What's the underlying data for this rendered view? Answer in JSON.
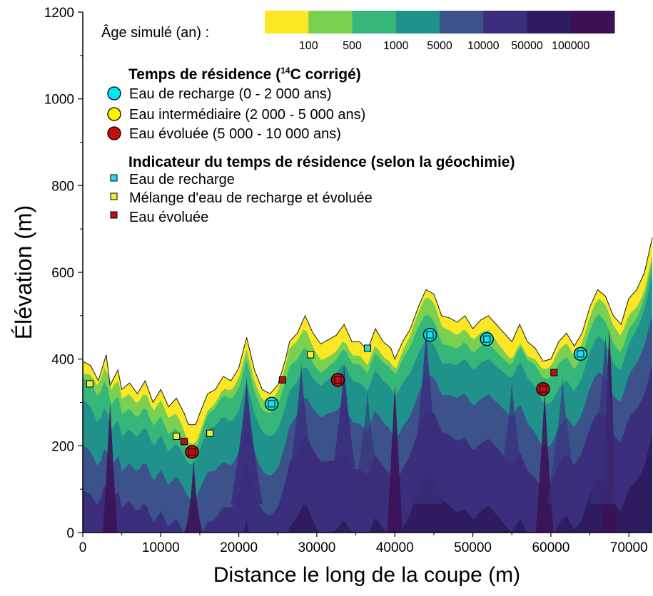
{
  "chart_data": {
    "type": "area",
    "xlabel": "Distance le long de la coupe (m)",
    "ylabel": "Élévation (m)",
    "xlim": [
      0,
      73000
    ],
    "ylim": [
      0,
      1200
    ],
    "xticks": [
      0,
      10000,
      20000,
      30000,
      40000,
      50000,
      60000,
      70000
    ],
    "yticks": [
      0,
      200,
      400,
      600,
      800,
      1000,
      1200
    ],
    "colorbar": {
      "label": "Âge simulé (an) :",
      "ticks": [
        "100",
        "500",
        "1000",
        "5000",
        "10000",
        "50000",
        "100000"
      ],
      "colors": [
        "#fde725",
        "#7ad151",
        "#35b779",
        "#21918c",
        "#3b528b",
        "#3b2e7c",
        "#2f1b60",
        "#3d0f55"
      ]
    },
    "surface": {
      "x": [
        0,
        1000,
        2000,
        3000,
        3500,
        4500,
        5000,
        6000,
        7000,
        8000,
        9000,
        10000,
        11000,
        12000,
        13000,
        13500,
        14000,
        14500,
        15000,
        16000,
        17000,
        18000,
        19000,
        20000,
        21000,
        22000,
        23000,
        24000,
        25000,
        26000,
        26500,
        27500,
        28500,
        29500,
        30500,
        31500,
        32500,
        33500,
        34500,
        35500,
        36500,
        37500,
        38500,
        39500,
        40000,
        41000,
        42000,
        43000,
        44000,
        45000,
        46000,
        47000,
        48000,
        49000,
        50000,
        51000,
        52000,
        53000,
        54000,
        55000,
        56000,
        57000,
        58000,
        59000,
        60000,
        61000,
        62000,
        63000,
        64000,
        65000,
        66000,
        67000,
        68000,
        69000,
        70000,
        71000,
        72000,
        73000
      ],
      "y": [
        395,
        385,
        350,
        410,
        340,
        375,
        330,
        345,
        320,
        350,
        300,
        330,
        290,
        310,
        275,
        250,
        248,
        250,
        275,
        320,
        330,
        360,
        350,
        380,
        450,
        375,
        330,
        320,
        340,
        400,
        440,
        460,
        500,
        460,
        435,
        445,
        455,
        480,
        440,
        440,
        420,
        470,
        440,
        425,
        400,
        440,
        470,
        520,
        560,
        550,
        500,
        495,
        485,
        500,
        470,
        490,
        500,
        480,
        460,
        440,
        480,
        440,
        425,
        395,
        400,
        440,
        460,
        430,
        460,
        520,
        560,
        545,
        500,
        480,
        540,
        560,
        600,
        680
      ]
    },
    "series": [
      {
        "name": "Eau de recharge (0 - 2 000 ans)",
        "points": [
          [
            24200,
            297
          ],
          [
            44500,
            456
          ],
          [
            51800,
            446
          ],
          [
            63800,
            412
          ]
        ]
      },
      {
        "name": "Eau intermédiaire (2 000 - 5 000 ans)",
        "points": []
      },
      {
        "name": "Eau évoluée (5 000 - 10 000 ans)",
        "points": [
          [
            14000,
            186
          ],
          [
            32700,
            352
          ],
          [
            59000,
            331
          ]
        ]
      },
      {
        "name": "Eau de recharge",
        "points": [
          [
            24200,
            297
          ],
          [
            36500,
            425
          ],
          [
            44500,
            456
          ],
          [
            51800,
            446
          ],
          [
            63800,
            412
          ]
        ]
      },
      {
        "name": "Mélange d'eau de recharge et évoluée",
        "points": [
          [
            900,
            343
          ],
          [
            12000,
            222
          ],
          [
            16300,
            229
          ],
          [
            29200,
            410
          ]
        ]
      },
      {
        "name": "Eau évoluée",
        "points": [
          [
            13000,
            210
          ],
          [
            14000,
            186
          ],
          [
            25600,
            352
          ],
          [
            32700,
            352
          ],
          [
            59000,
            331
          ],
          [
            60400,
            369
          ]
        ]
      }
    ]
  },
  "legend": {
    "c14_title": "Temps de résidence (",
    "c14_sup": "14",
    "c14_title_end": "C corrigé)",
    "c14_items": [
      {
        "label": "Eau de recharge (0 - 2 000 ans)",
        "color": "#00e5f0"
      },
      {
        "label": "Eau intermédiaire (2 000 - 5 000 ans)",
        "color": "#fff200"
      },
      {
        "label": "Eau évoluée (5 000 - 10 000 ans)",
        "color": "#c40d0d"
      }
    ],
    "geo_title": "Indicateur du temps de résidence (selon la géochimie)",
    "geo_items": [
      {
        "label": "Eau de recharge",
        "color": "#2ad9e8"
      },
      {
        "label": "Mélange d'eau de recharge et évoluée",
        "color": "#f2ec3a"
      },
      {
        "label": "Eau évoluée",
        "color": "#b5121b"
      }
    ]
  }
}
